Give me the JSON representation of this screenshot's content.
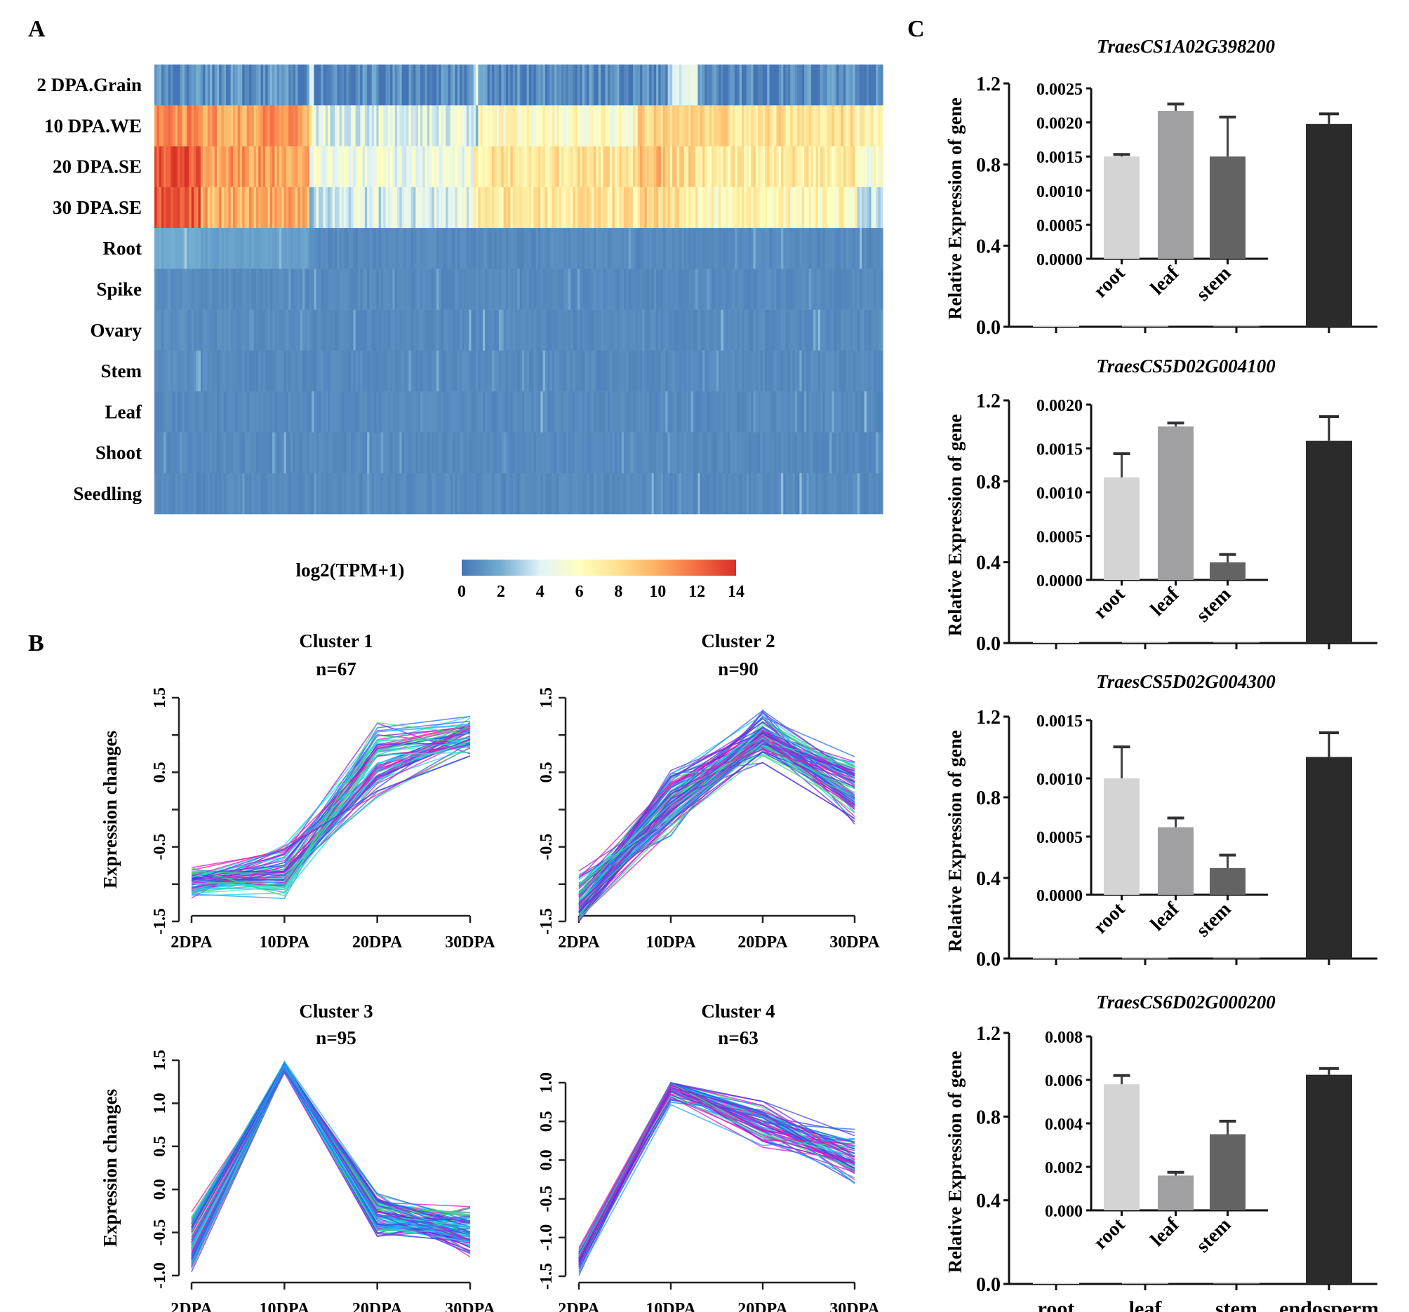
{
  "panels": {
    "a_label": "A",
    "b_label": "B",
    "c_label": "C"
  },
  "chart_data": [
    {
      "id": "A",
      "type": "heatmap",
      "title": "",
      "row_labels": [
        "2 DPA.Grain",
        "10 DPA.WE",
        "20 DPA.SE",
        "30 DPA.SE",
        "Root",
        "Spike",
        "Ovary",
        "Stem",
        "Leaf",
        "Shoot",
        "Seedling"
      ],
      "n_columns": 315,
      "colorbar": {
        "label": "log2(TPM+1)",
        "range": [
          0,
          14
        ],
        "ticks": [
          "0",
          "2",
          "4",
          "6",
          "8",
          "10",
          "12",
          "14"
        ],
        "colors": [
          "#4575b4",
          "#74add1",
          "#e0f3f8",
          "#ffffbf",
          "#fee090",
          "#fdae61",
          "#f46d43",
          "#d73027"
        ]
      },
      "column_blocks": [
        {
          "fraction": 0.065,
          "values": [
            0.6,
            11.0,
            13.0,
            12.5,
            1.6,
            0.6,
            0.6,
            0.6,
            0.5,
            0.5,
            0.5
          ]
        },
        {
          "fraction": 0.15,
          "values": [
            0.8,
            10.5,
            10.5,
            10.0,
            1.3,
            0.5,
            0.6,
            0.5,
            0.5,
            0.5,
            0.5
          ]
        },
        {
          "fraction": 0.005,
          "values": [
            3.0,
            6.5,
            5.0,
            2.0,
            0.6,
            0.5,
            0.5,
            0.5,
            0.5,
            0.5,
            0.5
          ]
        },
        {
          "fraction": 0.22,
          "values": [
            0.6,
            4.5,
            5.0,
            4.0,
            0.5,
            0.5,
            0.5,
            0.5,
            0.5,
            0.5,
            0.5
          ]
        },
        {
          "fraction": 0.005,
          "values": [
            3.5,
            3.0,
            7.0,
            7.0,
            0.5,
            0.5,
            0.5,
            0.5,
            0.5,
            0.5,
            0.5
          ]
        },
        {
          "fraction": 0.22,
          "values": [
            0.6,
            6.0,
            7.5,
            7.5,
            0.5,
            0.5,
            0.5,
            0.5,
            0.5,
            0.5,
            0.5
          ]
        },
        {
          "fraction": 0.04,
          "values": [
            0.6,
            8.5,
            9.5,
            8.5,
            0.5,
            0.5,
            0.5,
            0.5,
            0.5,
            0.5,
            0.5
          ]
        },
        {
          "fraction": 0.04,
          "values": [
            3.5,
            8.0,
            8.0,
            7.5,
            0.5,
            0.5,
            0.5,
            0.5,
            0.5,
            0.5,
            0.5
          ]
        },
        {
          "fraction": 0.22,
          "values": [
            0.6,
            7.8,
            7.2,
            6.5,
            0.5,
            0.5,
            0.5,
            0.5,
            0.5,
            0.5,
            0.5
          ]
        },
        {
          "fraction": 0.03,
          "values": [
            0.6,
            6.5,
            6.0,
            3.5,
            0.5,
            0.5,
            0.5,
            0.5,
            0.5,
            0.5,
            0.5
          ]
        }
      ]
    },
    {
      "id": "B",
      "type": "line",
      "xlabel": "",
      "ylabel": "Expression changes",
      "categories": [
        "2DPA",
        "10DPA",
        "20DPA",
        "30DPA"
      ],
      "clusters": [
        {
          "title": "Cluster 1",
          "n_label": "n=67",
          "n": 67,
          "ylim": [
            -1.5,
            1.5
          ],
          "yticks": [
            "-1.5",
            "-0.5",
            "0.5",
            "1.5"
          ],
          "ytick_values": [
            -1.5,
            -0.5,
            0.5,
            1.5
          ],
          "yminor": [
            -1.0,
            0.0,
            1.0
          ],
          "mean_profile": [
            -1.0,
            -0.85,
            0.65,
            1.0
          ],
          "spread": [
            0.25,
            0.45,
            0.55,
            0.3
          ]
        },
        {
          "title": "Cluster 2",
          "n_label": "n=90",
          "n": 90,
          "ylim": [
            -1.5,
            1.5
          ],
          "yticks": [
            "-1.5",
            "-0.5",
            "0.5",
            "1.5"
          ],
          "ytick_values": [
            -1.5,
            -0.5,
            0.5,
            1.5
          ],
          "yminor": [
            -1.0,
            0.0,
            1.0
          ],
          "mean_profile": [
            -1.2,
            0.1,
            1.0,
            0.25
          ],
          "spread": [
            0.4,
            0.5,
            0.4,
            0.5
          ]
        },
        {
          "title": "Cluster 3",
          "n_label": "n=95",
          "n": 95,
          "ylim": [
            -1.0,
            1.5
          ],
          "yticks": [
            "-1.0",
            "-0.5",
            "0.0",
            "0.5",
            "1.0",
            "1.5"
          ],
          "ytick_values": [
            -1.0,
            -0.5,
            0.0,
            0.5,
            1.0,
            1.5
          ],
          "yminor": [],
          "mean_profile": [
            -0.65,
            1.42,
            -0.3,
            -0.45
          ],
          "spread": [
            0.45,
            0.08,
            0.3,
            0.35
          ]
        },
        {
          "title": "Cluster 4",
          "n_label": "n=63",
          "n": 63,
          "ylim": [
            -1.5,
            1.0
          ],
          "yticks": [
            "-1.5",
            "-1.0",
            "-0.5",
            "0.0",
            "0.5",
            "1.0"
          ],
          "ytick_values": [
            -1.5,
            -1.0,
            -0.5,
            0.0,
            0.5,
            1.0
          ],
          "yminor": [],
          "mean_profile": [
            -1.3,
            0.95,
            0.45,
            0.0
          ],
          "spread": [
            0.2,
            0.3,
            0.35,
            0.45
          ]
        }
      ]
    },
    {
      "id": "C",
      "type": "bar",
      "ylabel": "Relative Expression of gene",
      "categories": [
        "root",
        "leaf",
        "stem",
        "endosperm"
      ],
      "ylim": [
        0,
        1.2
      ],
      "yticks": [
        "0.0",
        "0.4",
        "0.8",
        "1.2"
      ],
      "ytick_values": [
        0.0,
        0.4,
        0.8,
        1.2
      ],
      "bar_colors": [
        "#d4d4d4",
        "#a0a0a2",
        "#636363",
        "#2b2b2b"
      ],
      "genes": [
        {
          "name": "TraesCS1A02G398200",
          "values": [
            0.0015,
            0.00217,
            0.0015,
            1.0
          ],
          "errors": [
            3e-05,
            0.0001,
            0.00058,
            0.05
          ],
          "inset": {
            "categories": [
              "root",
              "leaf",
              "stem"
            ],
            "ylim": [
              0,
              0.0025
            ],
            "yticks": [
              "0.0000",
              "0.0005",
              "0.0010",
              "0.0015",
              "0.0020",
              "0.0025"
            ],
            "ytick_values": [
              0,
              0.0005,
              0.001,
              0.0015,
              0.002,
              0.0025
            ]
          }
        },
        {
          "name": "TraesCS5D02G004100",
          "values": [
            0.00117,
            0.00175,
            0.0002,
            1.0
          ],
          "errors": [
            0.00027,
            4e-05,
            9e-05,
            0.12
          ],
          "inset": {
            "categories": [
              "root",
              "leaf",
              "stem"
            ],
            "ylim": [
              0,
              0.002
            ],
            "yticks": [
              "0.0000",
              "0.0005",
              "0.0010",
              "0.0015",
              "0.0020"
            ],
            "ytick_values": [
              0,
              0.0005,
              0.001,
              0.0015,
              0.002
            ]
          }
        },
        {
          "name": "TraesCS5D02G004300",
          "values": [
            0.001,
            0.00058,
            0.00023,
            1.0
          ],
          "errors": [
            0.00027,
            8e-05,
            0.00011,
            0.12
          ],
          "inset": {
            "categories": [
              "root",
              "leaf",
              "stem"
            ],
            "ylim": [
              0,
              0.0015
            ],
            "yticks": [
              "0.0000",
              "0.0005",
              "0.0010",
              "0.0015"
            ],
            "ytick_values": [
              0,
              0.0005,
              0.001,
              0.0015
            ]
          }
        },
        {
          "name": "TraesCS6D02G000200",
          "values": [
            0.0058,
            0.0016,
            0.0035,
            1.0
          ],
          "errors": [
            0.0004,
            0.00015,
            0.0006,
            0.03
          ],
          "inset": {
            "categories": [
              "root",
              "leaf",
              "stem"
            ],
            "ylim": [
              0,
              0.008
            ],
            "yticks": [
              "0.000",
              "0.002",
              "0.004",
              "0.006",
              "0.008"
            ],
            "ytick_values": [
              0,
              0.002,
              0.004,
              0.006,
              0.008
            ]
          }
        }
      ],
      "bottom_labels_on_last_only": true
    }
  ]
}
